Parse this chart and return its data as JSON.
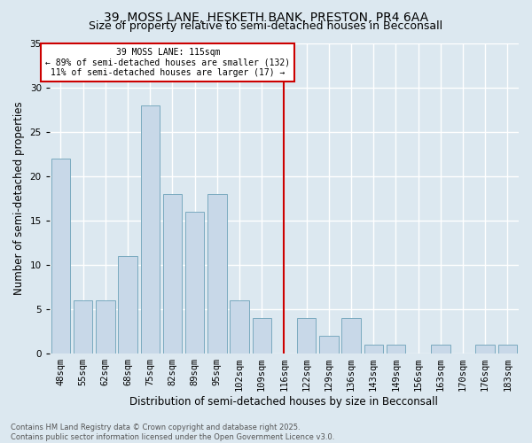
{
  "title1": "39, MOSS LANE, HESKETH BANK, PRESTON, PR4 6AA",
  "title2": "Size of property relative to semi-detached houses in Becconsall",
  "xlabel": "Distribution of semi-detached houses by size in Becconsall",
  "ylabel": "Number of semi-detached properties",
  "footer1": "Contains HM Land Registry data © Crown copyright and database right 2025.",
  "footer2": "Contains public sector information licensed under the Open Government Licence v3.0.",
  "categories": [
    "48sqm",
    "55sqm",
    "62sqm",
    "68sqm",
    "75sqm",
    "82sqm",
    "89sqm",
    "95sqm",
    "102sqm",
    "109sqm",
    "116sqm",
    "122sqm",
    "129sqm",
    "136sqm",
    "143sqm",
    "149sqm",
    "156sqm",
    "163sqm",
    "170sqm",
    "176sqm",
    "183sqm"
  ],
  "values": [
    22,
    6,
    6,
    11,
    28,
    18,
    16,
    18,
    6,
    4,
    0,
    4,
    2,
    4,
    1,
    1,
    0,
    1,
    0,
    1,
    1
  ],
  "bar_color": "#c8d8e8",
  "bar_edge_color": "#7aaabf",
  "vline_x_index": 10,
  "vline_color": "#cc0000",
  "annotation_text": "39 MOSS LANE: 115sqm\n← 89% of semi-detached houses are smaller (132)\n11% of semi-detached houses are larger (17) →",
  "annotation_box_color": "#ffffff",
  "annotation_box_edge": "#cc0000",
  "background_color": "#dce8f0",
  "plot_bg_color": "#dce8f0",
  "ylim": [
    0,
    35
  ],
  "yticks": [
    0,
    5,
    10,
    15,
    20,
    25,
    30,
    35
  ],
  "grid_color": "#ffffff",
  "title_fontsize": 10,
  "subtitle_fontsize": 9,
  "axis_label_fontsize": 8.5,
  "tick_fontsize": 7.5,
  "footer_fontsize": 6,
  "annot_fontsize": 7
}
